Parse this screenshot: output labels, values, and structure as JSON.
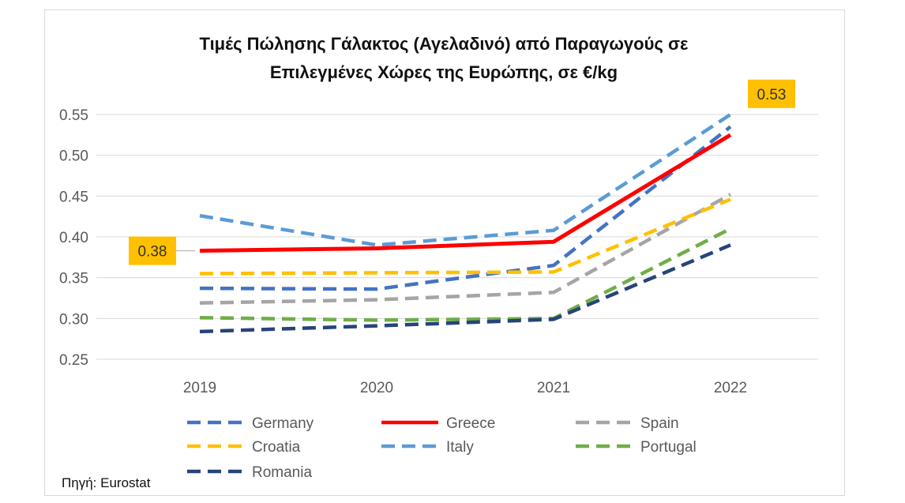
{
  "chart_data": {
    "type": "line",
    "title_lines": [
      "Τιμές Πώλησης Γάλακτος (Αγελαδινό) από Παραγωγούς σε",
      "Επιλεγμένες Χώρες της Ευρώπης, σε €/kg"
    ],
    "categories": [
      "2019",
      "2020",
      "2021",
      "2022"
    ],
    "y_ticks": [
      "0.55",
      "0.50",
      "0.45",
      "0.40",
      "0.35",
      "0.30",
      "0.25"
    ],
    "ylim": [
      0.25,
      0.55
    ],
    "grid": true,
    "legend_position": "bottom",
    "series": [
      {
        "name": "Germany",
        "values": [
          0.337,
          0.336,
          0.365,
          0.535
        ],
        "color": "#4472C4",
        "dashed": true
      },
      {
        "name": "Greece",
        "values": [
          0.383,
          0.386,
          0.394,
          0.525
        ],
        "color": "#FF0000",
        "dashed": false
      },
      {
        "name": "Spain",
        "values": [
          0.319,
          0.323,
          0.332,
          0.452
        ],
        "color": "#A5A5A5",
        "dashed": true
      },
      {
        "name": "Croatia",
        "values": [
          0.355,
          0.356,
          0.357,
          0.446
        ],
        "color": "#FFC000",
        "dashed": true
      },
      {
        "name": "Italy",
        "values": [
          0.426,
          0.39,
          0.408,
          0.55
        ],
        "color": "#5B9BD5",
        "dashed": true
      },
      {
        "name": "Portugal",
        "values": [
          0.301,
          0.298,
          0.3,
          0.41
        ],
        "color": "#70AD47",
        "dashed": true
      },
      {
        "name": "Romania",
        "values": [
          0.284,
          0.291,
          0.299,
          0.39
        ],
        "color": "#264478",
        "dashed": true
      }
    ],
    "annotations": [
      {
        "text": "0.38",
        "series": "Greece",
        "category": "2019",
        "background": "#FFC000"
      },
      {
        "text": "0.53",
        "series": "Greece",
        "category": "2022",
        "background": "#FFC000"
      }
    ]
  },
  "source": "Πηγή: Eurostat",
  "colors": {
    "grid": "#d9d9d9",
    "frame": "#d9d9d9",
    "callout": "#FFC000"
  }
}
